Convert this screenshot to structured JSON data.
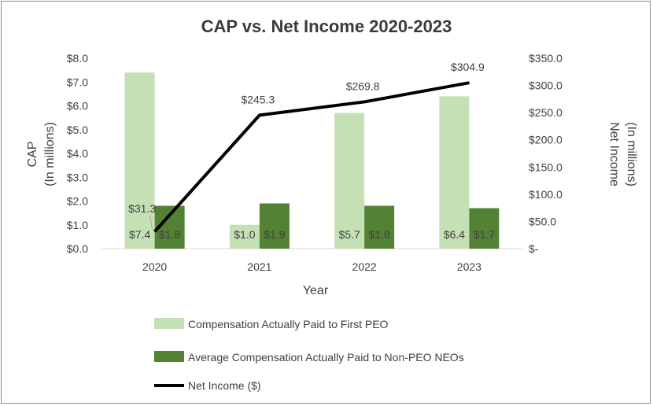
{
  "chart_data": {
    "type": "bar",
    "title": "CAP vs. Net Income 2020-2023",
    "xlabel": "Year",
    "ylabel_left": [
      "CAP",
      "(In millions)"
    ],
    "ylabel_right": [
      "Net Income",
      "(In millions)"
    ],
    "categories": [
      "2020",
      "2021",
      "2022",
      "2023"
    ],
    "ylim_left": [
      0,
      8
    ],
    "ylim_right": [
      0,
      350
    ],
    "left_ticks": [
      "$0.0",
      "$1.0",
      "$2.0",
      "$3.0",
      "$4.0",
      "$5.0",
      "$6.0",
      "$7.0",
      "$8.0"
    ],
    "right_ticks": [
      "$-",
      "$50.0",
      "$100.0",
      "$150.0",
      "$200.0",
      "$250.0",
      "$300.0",
      "$350.0"
    ],
    "grid": false,
    "legend_position": "bottom",
    "series": [
      {
        "name": "Compensation Actually Paid to First PEO",
        "type": "bar",
        "axis": "left",
        "color": "#c5e0b4",
        "values": [
          7.4,
          1.0,
          5.7,
          6.4
        ],
        "labels": [
          "$7.4",
          "$1.0",
          "$5.7",
          "$6.4"
        ]
      },
      {
        "name": "Average Compensation Actually Paid to Non-PEO NEOs",
        "type": "bar",
        "axis": "left",
        "color": "#548235",
        "values": [
          1.8,
          1.9,
          1.8,
          1.7
        ],
        "labels": [
          "$1.8",
          "$1.9",
          "$1.8",
          "$1.7"
        ]
      },
      {
        "name": "Net Income ($)",
        "type": "line",
        "axis": "right",
        "color": "#000000",
        "values": [
          31.3,
          245.3,
          269.8,
          304.9
        ],
        "labels": [
          "$31.3",
          "$245.3",
          "$269.8",
          "$304.9"
        ]
      }
    ]
  }
}
